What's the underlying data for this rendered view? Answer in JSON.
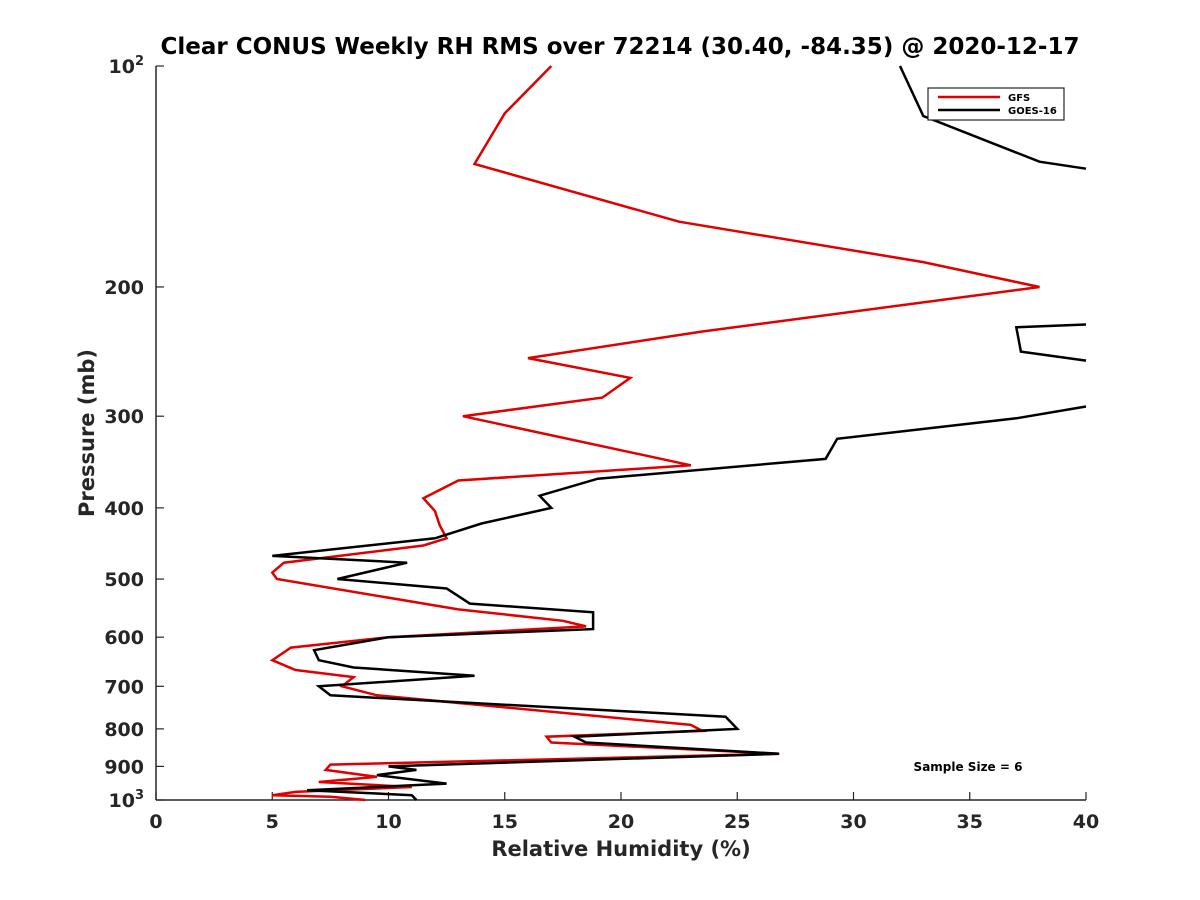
{
  "chart_data": {
    "type": "line",
    "title": "Clear CONUS Weekly RH RMS over 72214 (30.40, -84.35) @ 2020-12-17",
    "xlabel": "Relative Humidity (%)",
    "ylabel": "Pressure (mb)",
    "xlim": [
      0,
      40
    ],
    "ylim": [
      100,
      1000
    ],
    "yscale": "log",
    "y_reversed": true,
    "x_ticks": [
      0,
      5,
      10,
      15,
      20,
      25,
      30,
      35,
      40
    ],
    "x_tick_labels": [
      "0",
      "5",
      "10",
      "15",
      "20",
      "25",
      "30",
      "35",
      "40"
    ],
    "y_ticks": [
      200,
      300,
      400,
      500,
      600,
      700,
      800,
      900
    ],
    "y_tick_labels": [
      "200",
      "300",
      "400",
      "500",
      "600",
      "700",
      "800",
      "900"
    ],
    "y_power_ticks": [
      {
        "value": 100,
        "base": "10",
        "exp": "2"
      },
      {
        "value": 1000,
        "base": "10",
        "exp": "3"
      }
    ],
    "grid": false,
    "legend_position": "top-right",
    "annotation": "Sample Size = 6",
    "series": [
      {
        "name": "GFS",
        "color": "#e00000",
        "points": [
          [
            17.0,
            100
          ],
          [
            15.0,
            116
          ],
          [
            13.7,
            136
          ],
          [
            22.5,
            163
          ],
          [
            33.0,
            185
          ],
          [
            38.0,
            200
          ],
          [
            23.5,
            230
          ],
          [
            16.0,
            250
          ],
          [
            20.4,
            266
          ],
          [
            19.2,
            283
          ],
          [
            13.2,
            300
          ],
          [
            23.0,
            350
          ],
          [
            13.0,
            367
          ],
          [
            11.5,
            388
          ],
          [
            12.0,
            404
          ],
          [
            12.2,
            422
          ],
          [
            12.5,
            440
          ],
          [
            11.5,
            450
          ],
          [
            5.5,
            475
          ],
          [
            5.0,
            490
          ],
          [
            5.2,
            500
          ],
          [
            13.0,
            550
          ],
          [
            17.5,
            570
          ],
          [
            18.5,
            580
          ],
          [
            10.0,
            600
          ],
          [
            5.8,
            620
          ],
          [
            5.0,
            645
          ],
          [
            6.0,
            665
          ],
          [
            8.5,
            680
          ],
          [
            8.0,
            700
          ],
          [
            9.5,
            720
          ],
          [
            23.0,
            790
          ],
          [
            23.5,
            805
          ],
          [
            16.8,
            820
          ],
          [
            17.0,
            835
          ],
          [
            26.8,
            865
          ],
          [
            7.5,
            895
          ],
          [
            7.3,
            910
          ],
          [
            9.5,
            930
          ],
          [
            7.0,
            945
          ],
          [
            11.0,
            960
          ],
          [
            6.0,
            975
          ],
          [
            5.0,
            985
          ],
          [
            7.5,
            990
          ],
          [
            9.0,
            1000
          ]
        ]
      },
      {
        "name": "GOES-16",
        "color": "#000000",
        "points": [
          [
            32.0,
            100
          ],
          [
            33.0,
            117
          ],
          [
            38.0,
            135
          ],
          [
            40.0,
            138
          ],
          [
            null,
            null
          ],
          [
            40.0,
            225
          ],
          [
            37.0,
            227
          ],
          [
            37.2,
            245
          ],
          [
            40.0,
            252
          ],
          [
            null,
            null
          ],
          [
            40.0,
            291
          ],
          [
            37.0,
            302
          ],
          [
            29.3,
            322
          ],
          [
            28.8,
            343
          ],
          [
            19.0,
            365
          ],
          [
            16.5,
            385
          ],
          [
            17.0,
            400
          ],
          [
            14.0,
            420
          ],
          [
            12.0,
            440
          ],
          [
            5.0,
            465
          ],
          [
            10.8,
            475
          ],
          [
            7.8,
            500
          ],
          [
            12.5,
            515
          ],
          [
            13.5,
            540
          ],
          [
            18.8,
            555
          ],
          [
            18.8,
            585
          ],
          [
            10.0,
            600
          ],
          [
            6.8,
            625
          ],
          [
            7.0,
            645
          ],
          [
            8.5,
            660
          ],
          [
            13.7,
            677
          ],
          [
            7.0,
            700
          ],
          [
            7.5,
            720
          ],
          [
            24.5,
            770
          ],
          [
            25.0,
            800
          ],
          [
            18.0,
            820
          ],
          [
            18.5,
            835
          ],
          [
            26.8,
            865
          ],
          [
            10.0,
            900
          ],
          [
            11.2,
            910
          ],
          [
            9.5,
            925
          ],
          [
            12.5,
            950
          ],
          [
            6.5,
            970
          ],
          [
            11.0,
            985
          ],
          [
            11.2,
            1000
          ]
        ]
      }
    ]
  }
}
